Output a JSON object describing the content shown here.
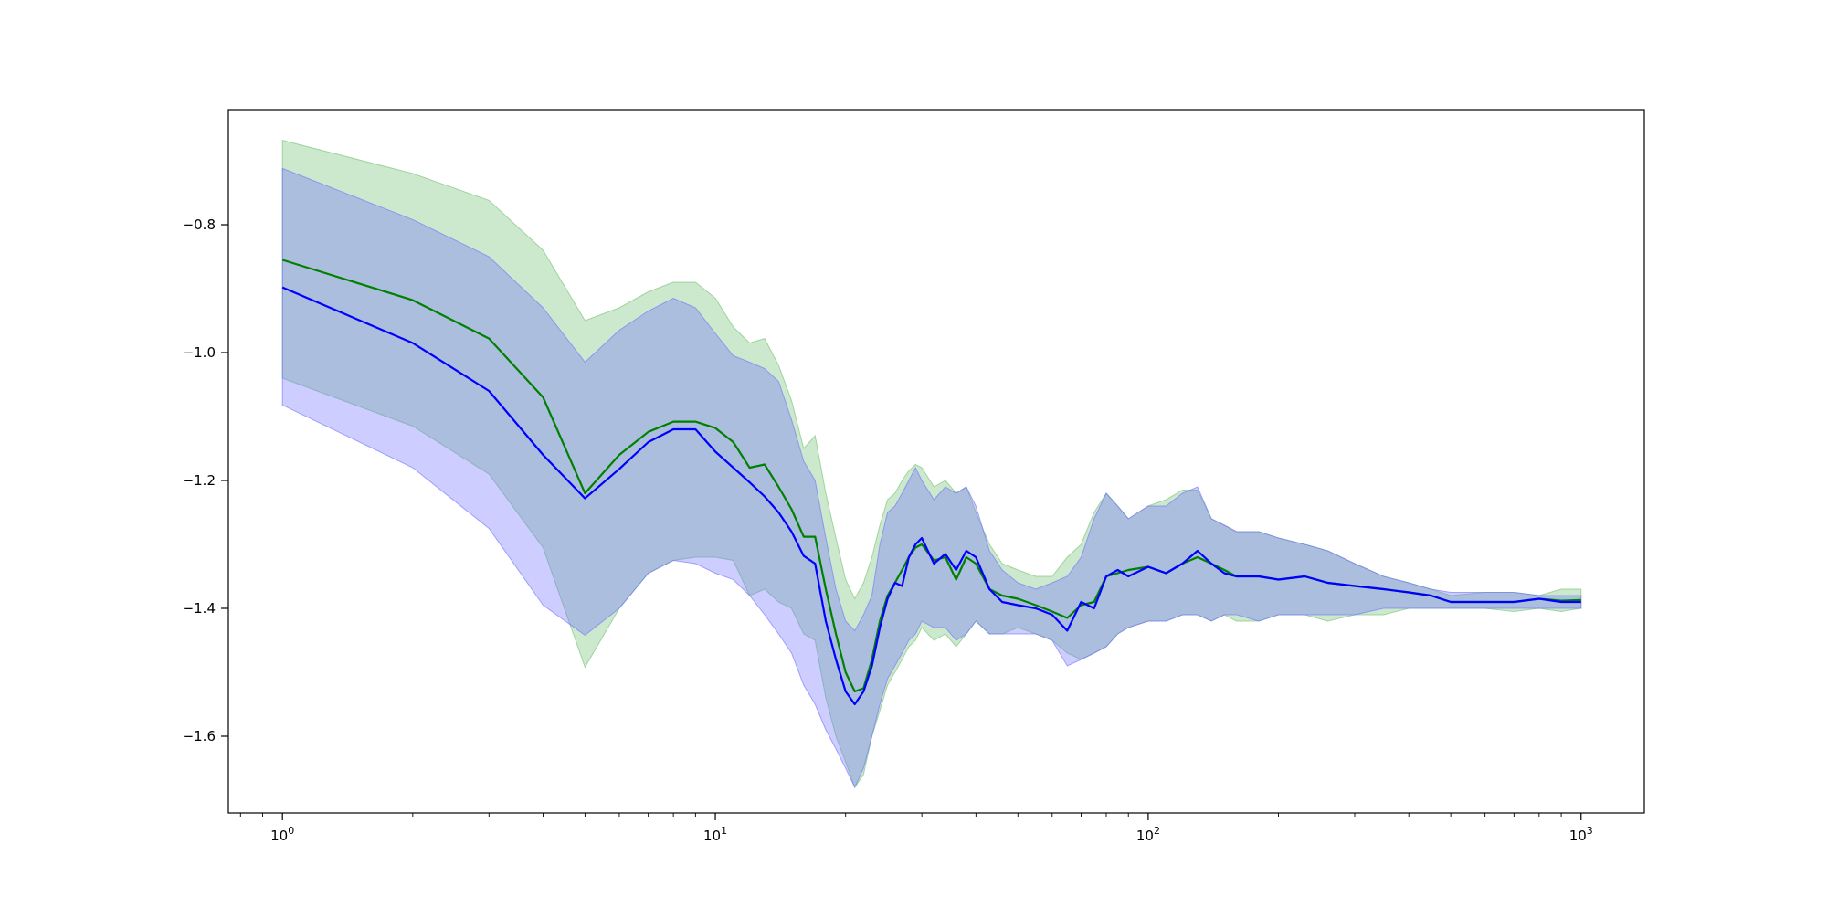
{
  "chart_data": {
    "type": "line",
    "title": "",
    "xlabel": "",
    "ylabel": "",
    "xscale": "log",
    "xlim": [
      0.75,
      1400
    ],
    "ylim": [
      -1.72,
      -0.62
    ],
    "grid": false,
    "legend": "none",
    "x_ticks": [
      {
        "value": 1,
        "base": "10",
        "exp": "0"
      },
      {
        "value": 10,
        "base": "10",
        "exp": "1"
      },
      {
        "value": 100,
        "base": "10",
        "exp": "2"
      },
      {
        "value": 1000,
        "base": "10",
        "exp": "3"
      }
    ],
    "y_ticks": [
      {
        "value": -1.6,
        "label": "−1.6"
      },
      {
        "value": -1.4,
        "label": "−1.4"
      },
      {
        "value": -1.2,
        "label": "−1.2"
      },
      {
        "value": -1.0,
        "label": "−1.0"
      },
      {
        "value": -0.8,
        "label": "−0.8"
      }
    ],
    "series": [
      {
        "color": "#008000",
        "band_color": "#6fbf6f",
        "band_opacity": 0.35,
        "x": [
          1,
          2,
          3,
          4,
          5,
          6,
          7,
          8,
          9,
          10,
          11,
          12,
          13,
          14,
          15,
          16,
          17,
          18,
          19,
          20,
          21,
          22,
          23,
          24,
          25,
          26,
          27,
          28,
          29,
          30,
          32,
          34,
          36,
          38,
          40,
          43,
          46,
          50,
          55,
          60,
          65,
          70,
          75,
          80,
          85,
          90,
          100,
          110,
          120,
          130,
          140,
          150,
          160,
          180,
          200,
          230,
          260,
          300,
          350,
          400,
          450,
          500,
          600,
          700,
          800,
          900,
          1000
        ],
        "y": [
          -0.855,
          -0.918,
          -0.978,
          -1.07,
          -1.22,
          -1.16,
          -1.124,
          -1.108,
          -1.108,
          -1.118,
          -1.14,
          -1.18,
          -1.175,
          -1.21,
          -1.245,
          -1.288,
          -1.288,
          -1.37,
          -1.44,
          -1.5,
          -1.53,
          -1.525,
          -1.48,
          -1.42,
          -1.38,
          -1.36,
          -1.34,
          -1.32,
          -1.305,
          -1.3,
          -1.325,
          -1.32,
          -1.355,
          -1.32,
          -1.33,
          -1.37,
          -1.38,
          -1.385,
          -1.395,
          -1.405,
          -1.415,
          -1.395,
          -1.39,
          -1.35,
          -1.345,
          -1.34,
          -1.335,
          -1.345,
          -1.33,
          -1.32,
          -1.33,
          -1.34,
          -1.35,
          -1.35,
          -1.355,
          -1.35,
          -1.36,
          -1.365,
          -1.37,
          -1.375,
          -1.38,
          -1.39,
          -1.39,
          -1.39,
          -1.385,
          -1.388,
          -1.387
        ],
        "upper": [
          -0.668,
          -0.72,
          -0.762,
          -0.84,
          -0.95,
          -0.93,
          -0.905,
          -0.89,
          -0.89,
          -0.915,
          -0.96,
          -0.985,
          -0.978,
          -1.02,
          -1.075,
          -1.15,
          -1.13,
          -1.22,
          -1.29,
          -1.355,
          -1.385,
          -1.36,
          -1.32,
          -1.27,
          -1.23,
          -1.22,
          -1.2,
          -1.185,
          -1.175,
          -1.18,
          -1.21,
          -1.2,
          -1.22,
          -1.21,
          -1.25,
          -1.3,
          -1.33,
          -1.34,
          -1.35,
          -1.35,
          -1.32,
          -1.3,
          -1.25,
          -1.22,
          -1.24,
          -1.26,
          -1.24,
          -1.23,
          -1.215,
          -1.215,
          -1.26,
          -1.27,
          -1.28,
          -1.28,
          -1.29,
          -1.3,
          -1.31,
          -1.33,
          -1.35,
          -1.36,
          -1.37,
          -1.38,
          -1.375,
          -1.375,
          -1.38,
          -1.37,
          -1.37
        ],
        "lower": [
          -1.04,
          -1.115,
          -1.19,
          -1.305,
          -1.492,
          -1.4,
          -1.345,
          -1.325,
          -1.32,
          -1.32,
          -1.325,
          -1.38,
          -1.37,
          -1.39,
          -1.4,
          -1.44,
          -1.45,
          -1.54,
          -1.6,
          -1.64,
          -1.68,
          -1.66,
          -1.6,
          -1.56,
          -1.52,
          -1.5,
          -1.48,
          -1.46,
          -1.45,
          -1.43,
          -1.45,
          -1.44,
          -1.46,
          -1.44,
          -1.42,
          -1.44,
          -1.44,
          -1.43,
          -1.44,
          -1.45,
          -1.47,
          -1.48,
          -1.47,
          -1.46,
          -1.44,
          -1.43,
          -1.42,
          -1.42,
          -1.41,
          -1.41,
          -1.42,
          -1.41,
          -1.42,
          -1.42,
          -1.41,
          -1.41,
          -1.42,
          -1.41,
          -1.41,
          -1.4,
          -1.4,
          -1.4,
          -1.4,
          -1.405,
          -1.4,
          -1.405,
          -1.4
        ]
      },
      {
        "color": "#0000ff",
        "band_color": "#6f6fff",
        "band_opacity": 0.35,
        "x": [
          1,
          2,
          3,
          4,
          5,
          6,
          7,
          8,
          9,
          10,
          11,
          12,
          13,
          14,
          15,
          16,
          17,
          18,
          19,
          20,
          21,
          22,
          23,
          24,
          25,
          26,
          27,
          28,
          29,
          30,
          32,
          34,
          36,
          38,
          40,
          43,
          46,
          50,
          55,
          60,
          65,
          70,
          75,
          80,
          85,
          90,
          100,
          110,
          120,
          130,
          140,
          150,
          160,
          180,
          200,
          230,
          260,
          300,
          350,
          400,
          450,
          500,
          600,
          700,
          800,
          900,
          1000
        ],
        "y": [
          -0.898,
          -0.985,
          -1.06,
          -1.16,
          -1.228,
          -1.182,
          -1.14,
          -1.12,
          -1.12,
          -1.155,
          -1.18,
          -1.203,
          -1.225,
          -1.25,
          -1.28,
          -1.318,
          -1.33,
          -1.42,
          -1.48,
          -1.53,
          -1.55,
          -1.53,
          -1.49,
          -1.43,
          -1.385,
          -1.36,
          -1.365,
          -1.32,
          -1.3,
          -1.29,
          -1.33,
          -1.315,
          -1.34,
          -1.31,
          -1.32,
          -1.37,
          -1.39,
          -1.395,
          -1.4,
          -1.41,
          -1.435,
          -1.39,
          -1.4,
          -1.35,
          -1.34,
          -1.35,
          -1.335,
          -1.345,
          -1.33,
          -1.31,
          -1.33,
          -1.345,
          -1.35,
          -1.35,
          -1.355,
          -1.35,
          -1.36,
          -1.365,
          -1.37,
          -1.375,
          -1.38,
          -1.39,
          -1.39,
          -1.39,
          -1.385,
          -1.39,
          -1.39
        ],
        "upper": [
          -0.712,
          -0.792,
          -0.85,
          -0.93,
          -1.015,
          -0.965,
          -0.935,
          -0.915,
          -0.93,
          -0.97,
          -1.005,
          -1.015,
          -1.025,
          -1.045,
          -1.105,
          -1.17,
          -1.2,
          -1.29,
          -1.37,
          -1.42,
          -1.435,
          -1.41,
          -1.38,
          -1.3,
          -1.25,
          -1.24,
          -1.22,
          -1.2,
          -1.18,
          -1.2,
          -1.23,
          -1.21,
          -1.22,
          -1.21,
          -1.24,
          -1.31,
          -1.34,
          -1.36,
          -1.37,
          -1.36,
          -1.35,
          -1.32,
          -1.26,
          -1.22,
          -1.24,
          -1.26,
          -1.24,
          -1.24,
          -1.22,
          -1.21,
          -1.26,
          -1.27,
          -1.28,
          -1.28,
          -1.29,
          -1.3,
          -1.31,
          -1.33,
          -1.35,
          -1.36,
          -1.37,
          -1.375,
          -1.375,
          -1.375,
          -1.38,
          -1.38,
          -1.38
        ],
        "lower": [
          -1.082,
          -1.18,
          -1.275,
          -1.395,
          -1.442,
          -1.4,
          -1.345,
          -1.325,
          -1.33,
          -1.345,
          -1.355,
          -1.38,
          -1.41,
          -1.44,
          -1.47,
          -1.52,
          -1.55,
          -1.59,
          -1.62,
          -1.65,
          -1.68,
          -1.65,
          -1.6,
          -1.55,
          -1.51,
          -1.49,
          -1.47,
          -1.45,
          -1.44,
          -1.42,
          -1.43,
          -1.43,
          -1.45,
          -1.44,
          -1.42,
          -1.44,
          -1.44,
          -1.44,
          -1.44,
          -1.45,
          -1.49,
          -1.48,
          -1.47,
          -1.46,
          -1.44,
          -1.43,
          -1.42,
          -1.42,
          -1.41,
          -1.41,
          -1.42,
          -1.41,
          -1.41,
          -1.42,
          -1.41,
          -1.41,
          -1.41,
          -1.41,
          -1.4,
          -1.4,
          -1.4,
          -1.4,
          -1.4,
          -1.4,
          -1.4,
          -1.4,
          -1.4
        ]
      }
    ]
  }
}
